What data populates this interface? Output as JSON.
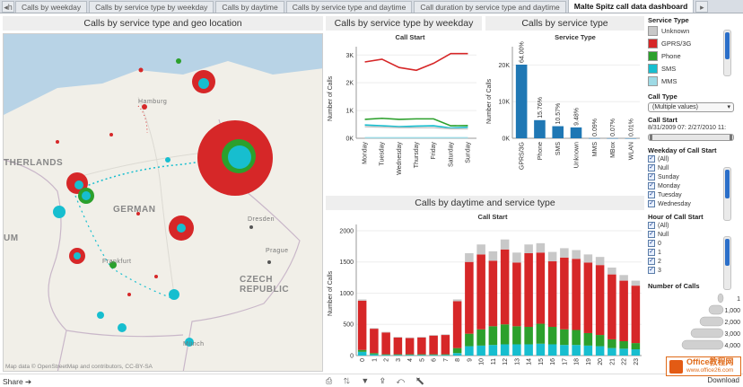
{
  "tabs": {
    "nav_left": "◂h",
    "items": [
      {
        "label": "Calls by weekday",
        "active": false
      },
      {
        "label": "Calls by service type by weekday",
        "active": false
      },
      {
        "label": "Calls by daytime",
        "active": false
      },
      {
        "label": "Calls by service type and daytime",
        "active": false
      },
      {
        "label": "Call duration by service type and daytime",
        "active": false
      },
      {
        "label": "Malte Spitz call data dashboard",
        "active": true
      }
    ],
    "nav_right": "▸"
  },
  "map": {
    "title": "Calls by service type and geo location",
    "labels": {
      "netherlands": "THERLANDS",
      "germany": "GERMAN",
      "hamburg": "Hamburg",
      "dresden": "Dresden",
      "prague": "Prague",
      "czech": "CZECH REPUBLIC",
      "frankfurt": "Frankfurt",
      "munich": "Münch",
      "um": "UM"
    },
    "credit": "Map data © OpenStreetMap and contributors, CC-BY-SA"
  },
  "colors": {
    "unknown": "#c8c8c8",
    "gprs": "#d62728",
    "phone": "#2ca02c",
    "sms": "#17becf",
    "mms": "#9edae5",
    "bar_blue": "#1f77b4"
  },
  "weekday_chart": {
    "title": "Calls by service type by weekday",
    "subtitle": "Call Start",
    "ylabel": "Number of Calls",
    "y_ticks": [
      "0K",
      "1K",
      "2K",
      "3K"
    ]
  },
  "service_chart": {
    "title": "Calls by service type",
    "subtitle": "Service Type",
    "ylabel": "Number of Calls",
    "y_ticks": [
      "0K",
      "10K",
      "20K"
    ]
  },
  "daytime_chart": {
    "title": "Calls by daytime and service type",
    "subtitle": "Call Start",
    "ylabel": "Number of Calls",
    "y_ticks": [
      "0",
      "500",
      "1000",
      "1500",
      "2000"
    ]
  },
  "chart_data": [
    {
      "type": "line",
      "title": "Calls by service type by weekday",
      "xlabel": "Call Start",
      "ylabel": "Number of Calls",
      "categories": [
        "Monday",
        "Tuesday",
        "Wednesday",
        "Thursday",
        "Friday",
        "Saturday",
        "Sunday"
      ],
      "ylim": [
        0,
        3300
      ],
      "series": [
        {
          "name": "GPRS/3G",
          "color": "#d62728",
          "values": [
            2750,
            2850,
            2550,
            2450,
            2700,
            3050,
            3050
          ]
        },
        {
          "name": "Phone",
          "color": "#2ca02c",
          "values": [
            680,
            720,
            680,
            700,
            700,
            450,
            460
          ]
        },
        {
          "name": "SMS",
          "color": "#17becf",
          "values": [
            480,
            450,
            420,
            440,
            450,
            370,
            400
          ]
        },
        {
          "name": "Unknown",
          "color": "#c8c8c8",
          "values": [
            420,
            400,
            380,
            380,
            380,
            340,
            340
          ]
        },
        {
          "name": "MMS",
          "color": "#9edae5",
          "values": [
            20,
            20,
            20,
            20,
            20,
            20,
            20
          ]
        }
      ]
    },
    {
      "type": "bar",
      "title": "Calls by service type",
      "xlabel": "Service Type",
      "ylabel": "Number of Calls",
      "categories": [
        "GPRS/3G",
        "Phone",
        "SMS",
        "Unknown",
        "MMS",
        "MBox",
        "WLAN"
      ],
      "values": [
        20100,
        4950,
        3300,
        2970,
        30,
        20,
        3
      ],
      "data_labels": [
        "64.00%",
        "15.76%",
        "10.57%",
        "9.48%",
        "0.09%",
        "0.07%",
        "0.01%"
      ],
      "ylim": [
        0,
        25000
      ]
    },
    {
      "type": "bar",
      "stacked": true,
      "title": "Calls by daytime and service type",
      "xlabel": "Call Start",
      "ylabel": "Number of Calls",
      "categories": [
        "0",
        "1",
        "2",
        "3",
        "4",
        "5",
        "6",
        "7",
        "8",
        "9",
        "10",
        "11",
        "12",
        "13",
        "14",
        "15",
        "16",
        "17",
        "18",
        "19",
        "20",
        "21",
        "22",
        "23"
      ],
      "ylim": [
        0,
        2100
      ],
      "series": [
        {
          "name": "SMS",
          "color": "#17becf",
          "values": [
            60,
            20,
            10,
            10,
            10,
            10,
            10,
            10,
            40,
            150,
            160,
            170,
            180,
            180,
            180,
            190,
            180,
            170,
            170,
            160,
            150,
            120,
            110,
            100
          ]
        },
        {
          "name": "Phone",
          "color": "#2ca02c",
          "values": [
            30,
            20,
            10,
            10,
            10,
            10,
            10,
            10,
            80,
            200,
            260,
            300,
            320,
            290,
            280,
            320,
            280,
            250,
            240,
            200,
            180,
            140,
            120,
            100
          ]
        },
        {
          "name": "GPRS/3G",
          "color": "#d62728",
          "values": [
            790,
            390,
            350,
            270,
            260,
            270,
            300,
            310,
            750,
            1150,
            1200,
            1050,
            1200,
            1020,
            1180,
            1140,
            1050,
            1150,
            1140,
            1130,
            1120,
            1040,
            970,
            920
          ]
        },
        {
          "name": "Unknown",
          "color": "#c8c8c8",
          "values": [
            20,
            10,
            10,
            10,
            10,
            10,
            10,
            10,
            30,
            140,
            160,
            150,
            160,
            160,
            140,
            150,
            150,
            150,
            140,
            130,
            130,
            110,
            90,
            80
          ]
        }
      ]
    }
  ],
  "filters": {
    "service_type": {
      "title": "Service Type",
      "items": [
        {
          "label": "Unknown",
          "color": "#c8c8c8"
        },
        {
          "label": "GPRS/3G",
          "color": "#d62728"
        },
        {
          "label": "Phone",
          "color": "#2ca02c"
        },
        {
          "label": "SMS",
          "color": "#17becf"
        },
        {
          "label": "MMS",
          "color": "#9edae5"
        }
      ]
    },
    "call_type": {
      "title": "Call Type",
      "value": "(Multiple values)"
    },
    "call_start": {
      "title": "Call Start",
      "range": "8/31/2009 07:  2/27/2010 11:"
    },
    "weekday": {
      "title": "Weekday of Call Start",
      "items": [
        "(All)",
        "Null",
        "Sunday",
        "Monday",
        "Tuesday",
        "Wednesday"
      ]
    },
    "hour": {
      "title": "Hour of Call Start",
      "items": [
        "(All)",
        "Null",
        "0",
        "1",
        "2",
        "3"
      ]
    },
    "number_of_calls": {
      "title": "Number of Calls",
      "legend": [
        "1",
        "1,000",
        "2,000",
        "3,000",
        "4,000"
      ]
    }
  },
  "bottom": {
    "share": "Share ➔",
    "tools": "⎙ ⇅ ▼ ⇪ ↶ ⬉",
    "download": "Download",
    "watermark_line1": "Office教程网",
    "watermark_line2": "www.office26.com"
  }
}
